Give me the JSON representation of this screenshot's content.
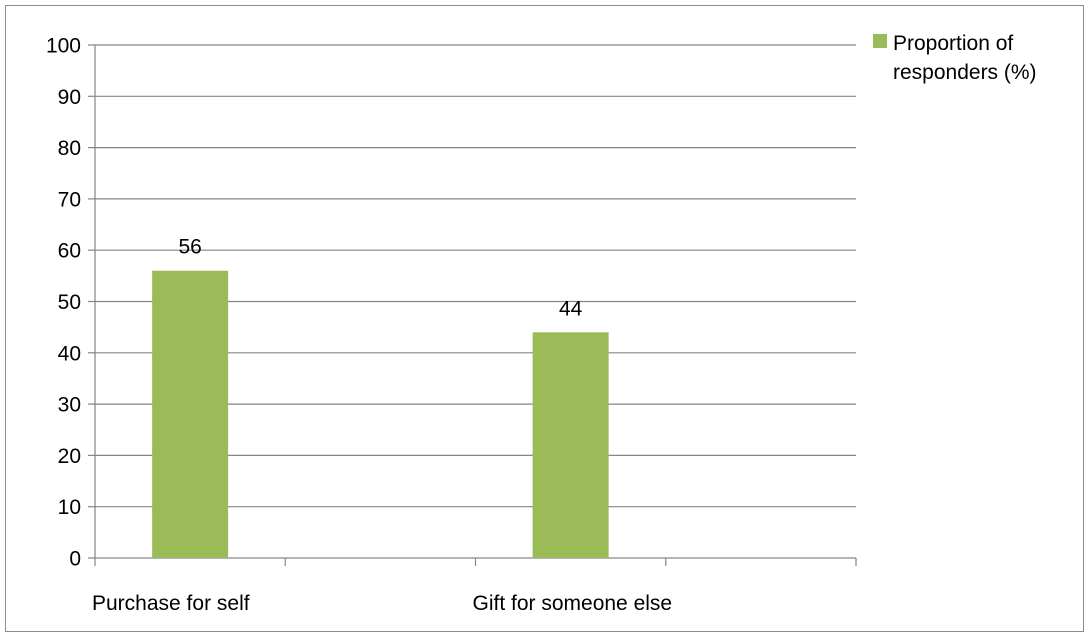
{
  "chart_data": {
    "type": "bar",
    "categories": [
      "Purchase for self",
      "Gift for someone else"
    ],
    "series": [
      {
        "name": "Proportion of responders (%)",
        "values": [
          56,
          44
        ],
        "color": "#9bbb59"
      }
    ],
    "data_labels": [
      "56",
      "44"
    ],
    "ylim": [
      0,
      100
    ],
    "y_ticks": [
      0,
      10,
      20,
      30,
      40,
      50,
      60,
      70,
      80,
      90,
      100
    ],
    "y_tick_labels": [
      "0",
      "10",
      "20",
      "30",
      "40",
      "50",
      "60",
      "70",
      "80",
      "90",
      "100"
    ],
    "grid": true,
    "gridline_color": "#868686",
    "legend": {
      "placement": "top-right",
      "lines": [
        "Proportion of",
        "responders (%)"
      ]
    },
    "title": "",
    "xlabel": "",
    "ylabel": ""
  }
}
